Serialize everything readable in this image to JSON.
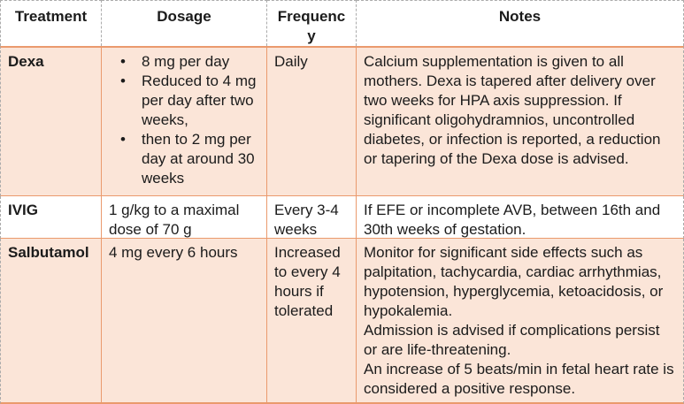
{
  "table": {
    "headers": [
      "Treatment",
      "Dosage",
      "Frequency",
      "Notes"
    ],
    "rows": [
      {
        "treatment": "Dexa",
        "dosage_bullets": [
          "8 mg per day",
          "Reduced to 4 mg per day after two weeks,",
          "then to 2 mg per day at around 30 weeks"
        ],
        "frequency": "Daily",
        "notes": [
          "Calcium supplementation is given to all mothers. Dexa is tapered after delivery over two weeks for HPA axis suppression. If significant oligohydramnios, uncontrolled diabetes, or infection is reported, a reduction or tapering of the Dexa dose is advised."
        ]
      },
      {
        "treatment": "IVIG",
        "dosage": "1 g/kg to a maximal dose of 70 g",
        "frequency": "Every 3-4 weeks",
        "notes": [
          "If EFE or incomplete AVB, between 16th and 30th weeks of gestation."
        ]
      },
      {
        "treatment": "Salbutamol",
        "dosage": "4 mg every 6 hours",
        "frequency": "Increased to every 4 hours if tolerated",
        "notes": [
          "Monitor for significant side effects such as palpitation, tachycardia, cardiac arrhythmias, hypotension, hyperglycemia, ketoacidosis, or hypokalemia.",
          "Admission is advised if complications persist or are life-threatening.",
          "An increase of 5 beats/min in fetal heart rate is considered a positive response."
        ]
      }
    ],
    "colors": {
      "row_fill_peach": "#FBE5D8",
      "row_fill_white": "#FFFFFF",
      "body_border_orange": "#EA9A6D",
      "header_border_gray": "#ABABAB",
      "text": "#1B1B1B"
    }
  }
}
